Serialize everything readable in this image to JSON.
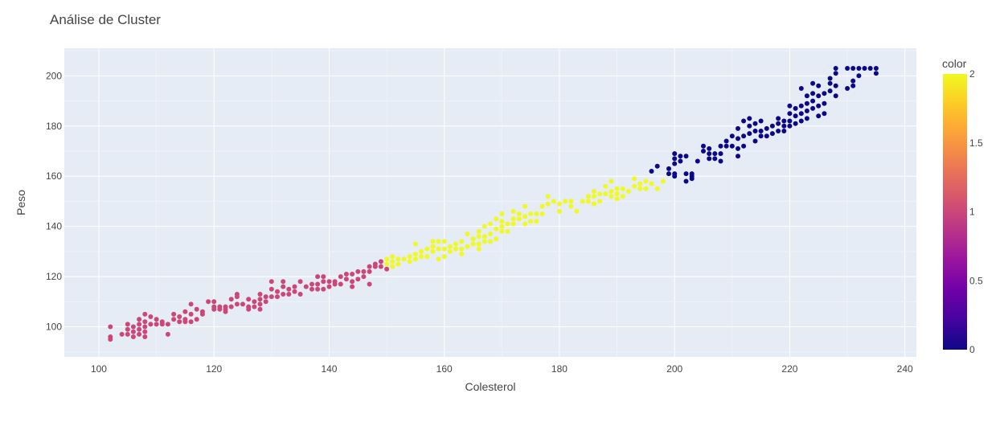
{
  "chart_data": {
    "type": "scatter",
    "title": "Análise de Cluster",
    "xlabel": "Colesterol",
    "ylabel": "Peso",
    "xlim": [
      94,
      242
    ],
    "ylim": [
      88,
      211
    ],
    "x_ticks": [
      "100",
      "120",
      "140",
      "160",
      "180",
      "200",
      "220",
      "240"
    ],
    "y_ticks": [
      "100",
      "120",
      "140",
      "160",
      "180",
      "200"
    ],
    "grid": true,
    "colorbar": {
      "title": "color",
      "range": [
        0,
        2
      ],
      "ticks": [
        "0",
        "0.5",
        "1",
        "1.5",
        "2"
      ],
      "colorscale": [
        "#0d0887",
        "#46039f",
        "#7201a8",
        "#9c179e",
        "#bd3786",
        "#d8576b",
        "#ed7953",
        "#fb9f3a",
        "#fdca26",
        "#f0f921"
      ]
    },
    "series": [
      {
        "color_value": 1,
        "color": "#cc4778",
        "points": [
          [
            102,
            95
          ],
          [
            102,
            96
          ],
          [
            102,
            100
          ],
          [
            104,
            97
          ],
          [
            105,
            97
          ],
          [
            105,
            99
          ],
          [
            105,
            101
          ],
          [
            106,
            96
          ],
          [
            106,
            98
          ],
          [
            106,
            100
          ],
          [
            107,
            97
          ],
          [
            107,
            99
          ],
          [
            107,
            101
          ],
          [
            107,
            103
          ],
          [
            108,
            96
          ],
          [
            108,
            98
          ],
          [
            108,
            100
          ],
          [
            108,
            102
          ],
          [
            108,
            105
          ],
          [
            109,
            101
          ],
          [
            109,
            104
          ],
          [
            110,
            101
          ],
          [
            110,
            103
          ],
          [
            111,
            101
          ],
          [
            111,
            102
          ],
          [
            112,
            97
          ],
          [
            112,
            101
          ],
          [
            113,
            103
          ],
          [
            113,
            105
          ],
          [
            114,
            102
          ],
          [
            114,
            104
          ],
          [
            115,
            102
          ],
          [
            115,
            103
          ],
          [
            115,
            106
          ],
          [
            116,
            102
          ],
          [
            116,
            105
          ],
          [
            116,
            109
          ],
          [
            117,
            103
          ],
          [
            117,
            107
          ],
          [
            118,
            105
          ],
          [
            118,
            106
          ],
          [
            119,
            110
          ],
          [
            120,
            107
          ],
          [
            120,
            108
          ],
          [
            120,
            110
          ],
          [
            121,
            107
          ],
          [
            121,
            108
          ],
          [
            122,
            106
          ],
          [
            122,
            107
          ],
          [
            122,
            108
          ],
          [
            123,
            108
          ],
          [
            123,
            111
          ],
          [
            124,
            109
          ],
          [
            124,
            112
          ],
          [
            124,
            113
          ],
          [
            125,
            109
          ],
          [
            126,
            107
          ],
          [
            126,
            108
          ],
          [
            126,
            111
          ],
          [
            127,
            108
          ],
          [
            127,
            110
          ],
          [
            128,
            107
          ],
          [
            128,
            109
          ],
          [
            128,
            111
          ],
          [
            128,
            113
          ],
          [
            129,
            110
          ],
          [
            129,
            112
          ],
          [
            130,
            112
          ],
          [
            130,
            115
          ],
          [
            130,
            118
          ],
          [
            131,
            112
          ],
          [
            131,
            114
          ],
          [
            132,
            113
          ],
          [
            132,
            116
          ],
          [
            132,
            118
          ],
          [
            133,
            113
          ],
          [
            133,
            115
          ],
          [
            134,
            114
          ],
          [
            134,
            116
          ],
          [
            135,
            113
          ],
          [
            135,
            118
          ],
          [
            136,
            116
          ],
          [
            137,
            115
          ],
          [
            137,
            117
          ],
          [
            138,
            115
          ],
          [
            138,
            117
          ],
          [
            138,
            120
          ],
          [
            139,
            115
          ],
          [
            139,
            118
          ],
          [
            139,
            120
          ],
          [
            140,
            116
          ],
          [
            140,
            118
          ],
          [
            141,
            117
          ],
          [
            141,
            118
          ],
          [
            142,
            117
          ],
          [
            142,
            120
          ],
          [
            143,
            119
          ],
          [
            143,
            121
          ],
          [
            144,
            116
          ],
          [
            144,
            118
          ],
          [
            144,
            121
          ],
          [
            145,
            119
          ],
          [
            145,
            122
          ],
          [
            146,
            120
          ],
          [
            146,
            122
          ],
          [
            147,
            117
          ],
          [
            147,
            122
          ],
          [
            147,
            124
          ],
          [
            148,
            124
          ],
          [
            148,
            125
          ],
          [
            149,
            124
          ],
          [
            149,
            126
          ],
          [
            150,
            123
          ]
        ]
      },
      {
        "color_value": 2,
        "color": "#f0f921",
        "points": [
          [
            150,
            125
          ],
          [
            150,
            127
          ],
          [
            151,
            124
          ],
          [
            151,
            126
          ],
          [
            151,
            128
          ],
          [
            152,
            125
          ],
          [
            152,
            127
          ],
          [
            153,
            127
          ],
          [
            154,
            126
          ],
          [
            154,
            128
          ],
          [
            155,
            127
          ],
          [
            155,
            129
          ],
          [
            155,
            133
          ],
          [
            156,
            128
          ],
          [
            156,
            130
          ],
          [
            157,
            128
          ],
          [
            157,
            131
          ],
          [
            158,
            130
          ],
          [
            158,
            132
          ],
          [
            158,
            134
          ],
          [
            159,
            127
          ],
          [
            159,
            131
          ],
          [
            159,
            134
          ],
          [
            160,
            128
          ],
          [
            160,
            131
          ],
          [
            160,
            134
          ],
          [
            161,
            130
          ],
          [
            161,
            132
          ],
          [
            162,
            131
          ],
          [
            162,
            133
          ],
          [
            163,
            129
          ],
          [
            163,
            131
          ],
          [
            163,
            134
          ],
          [
            164,
            132
          ],
          [
            164,
            137
          ],
          [
            165,
            133
          ],
          [
            165,
            135
          ],
          [
            166,
            131
          ],
          [
            166,
            133
          ],
          [
            166,
            136
          ],
          [
            166,
            138
          ],
          [
            167,
            134
          ],
          [
            167,
            136
          ],
          [
            167,
            140
          ],
          [
            168,
            134
          ],
          [
            168,
            137
          ],
          [
            168,
            141
          ],
          [
            169,
            135
          ],
          [
            169,
            139
          ],
          [
            169,
            143
          ],
          [
            170,
            138
          ],
          [
            170,
            140
          ],
          [
            170,
            142
          ],
          [
            170,
            145
          ],
          [
            171,
            138
          ],
          [
            171,
            141
          ],
          [
            172,
            141
          ],
          [
            172,
            143
          ],
          [
            172,
            146
          ],
          [
            173,
            143
          ],
          [
            173,
            145
          ],
          [
            174,
            141
          ],
          [
            174,
            144
          ],
          [
            174,
            148
          ],
          [
            175,
            142
          ],
          [
            175,
            145
          ],
          [
            176,
            142
          ],
          [
            176,
            145
          ],
          [
            177,
            145
          ],
          [
            177,
            148
          ],
          [
            178,
            149
          ],
          [
            178,
            152
          ],
          [
            179,
            150
          ],
          [
            180,
            146
          ],
          [
            180,
            149
          ],
          [
            181,
            150
          ],
          [
            182,
            148
          ],
          [
            182,
            150
          ],
          [
            183,
            146
          ],
          [
            184,
            150
          ],
          [
            185,
            150
          ],
          [
            185,
            152
          ],
          [
            186,
            149
          ],
          [
            186,
            152
          ],
          [
            186,
            154
          ],
          [
            187,
            150
          ],
          [
            187,
            153
          ],
          [
            188,
            153
          ],
          [
            188,
            156
          ],
          [
            189,
            152
          ],
          [
            189,
            154
          ],
          [
            189,
            158
          ],
          [
            190,
            151
          ],
          [
            190,
            153
          ],
          [
            190,
            155
          ],
          [
            191,
            152
          ],
          [
            191,
            155
          ],
          [
            192,
            154
          ],
          [
            193,
            156
          ],
          [
            193,
            159
          ],
          [
            194,
            155
          ],
          [
            194,
            157
          ],
          [
            195,
            155
          ],
          [
            195,
            158
          ],
          [
            196,
            157
          ],
          [
            197,
            155
          ],
          [
            198,
            158
          ]
        ]
      },
      {
        "color_value": 0,
        "color": "#0d0887",
        "points": [
          [
            196,
            162
          ],
          [
            197,
            164
          ],
          [
            199,
            161
          ],
          [
            199,
            163
          ],
          [
            200,
            160
          ],
          [
            200,
            161
          ],
          [
            200,
            165
          ],
          [
            200,
            167
          ],
          [
            200,
            169
          ],
          [
            201,
            166
          ],
          [
            201,
            168
          ],
          [
            202,
            158
          ],
          [
            202,
            161
          ],
          [
            202,
            168
          ],
          [
            203,
            159
          ],
          [
            203,
            160
          ],
          [
            203,
            161
          ],
          [
            204,
            166
          ],
          [
            205,
            170
          ],
          [
            205,
            172
          ],
          [
            206,
            167
          ],
          [
            206,
            169
          ],
          [
            206,
            171
          ],
          [
            207,
            167
          ],
          [
            207,
            169
          ],
          [
            208,
            166
          ],
          [
            208,
            169
          ],
          [
            208,
            172
          ],
          [
            209,
            172
          ],
          [
            209,
            174
          ],
          [
            210,
            172
          ],
          [
            210,
            176
          ],
          [
            211,
            168
          ],
          [
            211,
            171
          ],
          [
            211,
            175
          ],
          [
            211,
            179
          ],
          [
            212,
            172
          ],
          [
            212,
            176
          ],
          [
            212,
            182
          ],
          [
            213,
            177
          ],
          [
            213,
            180
          ],
          [
            213,
            183
          ],
          [
            214,
            174
          ],
          [
            214,
            178
          ],
          [
            214,
            181
          ],
          [
            215,
            176
          ],
          [
            215,
            178
          ],
          [
            215,
            182
          ],
          [
            216,
            176
          ],
          [
            216,
            179
          ],
          [
            217,
            177
          ],
          [
            217,
            180
          ],
          [
            218,
            178
          ],
          [
            218,
            181
          ],
          [
            218,
            183
          ],
          [
            219,
            178
          ],
          [
            219,
            180
          ],
          [
            219,
            182
          ],
          [
            220,
            180
          ],
          [
            220,
            182
          ],
          [
            220,
            185
          ],
          [
            220,
            188
          ],
          [
            221,
            181
          ],
          [
            221,
            184
          ],
          [
            221,
            187
          ],
          [
            222,
            182
          ],
          [
            222,
            185
          ],
          [
            222,
            188
          ],
          [
            222,
            195
          ],
          [
            223,
            183
          ],
          [
            223,
            186
          ],
          [
            223,
            189
          ],
          [
            223,
            192
          ],
          [
            224,
            187
          ],
          [
            224,
            190
          ],
          [
            224,
            193
          ],
          [
            224,
            197
          ],
          [
            225,
            184
          ],
          [
            225,
            188
          ],
          [
            225,
            192
          ],
          [
            225,
            196
          ],
          [
            226,
            185
          ],
          [
            226,
            189
          ],
          [
            226,
            193
          ],
          [
            227,
            194
          ],
          [
            227,
            197
          ],
          [
            227,
            199
          ],
          [
            228,
            192
          ],
          [
            228,
            196
          ],
          [
            228,
            201
          ],
          [
            228,
            203
          ],
          [
            230,
            195
          ],
          [
            230,
            203
          ],
          [
            231,
            196
          ],
          [
            231,
            198
          ],
          [
            231,
            203
          ],
          [
            232,
            200
          ],
          [
            232,
            203
          ],
          [
            233,
            203
          ],
          [
            234,
            203
          ],
          [
            235,
            201
          ],
          [
            235,
            203
          ]
        ]
      }
    ]
  }
}
